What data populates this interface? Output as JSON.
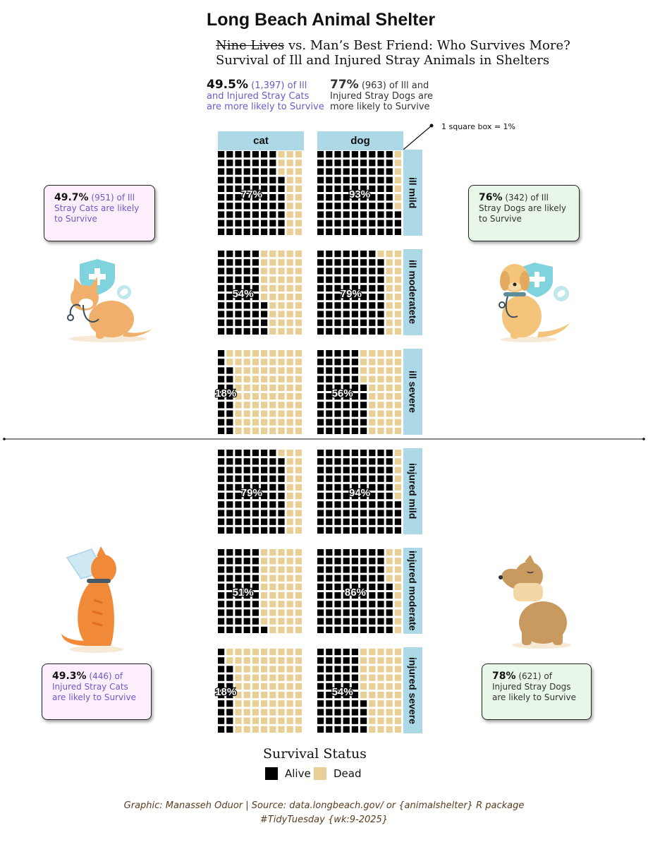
{
  "title": "Long Beach Animal Shelter",
  "subtitle": {
    "struck": "Nine Lives",
    "rest": " vs. Man’s Best Friend: Who Survives More?",
    "line2": "Survival of Ill and Injured Stray Animals in Shelters"
  },
  "summary_cat": {
    "pct": "49.5%",
    "rest": " (1,397) of Ill and Injured Stray Cats are more likely to Survive"
  },
  "summary_dog": {
    "pct": "77%",
    "rest": " (963) of Ill and Injured Stray Dogs are more likely to Survive"
  },
  "annotation": "1 square box = 1%",
  "callouts": {
    "ill_cat": {
      "pct": "49.7%",
      "rest": " (951) of Ill Stray Cats are likely to Survive"
    },
    "ill_dog": {
      "pct": "76%",
      "rest": " (342) of Ill Stray Dogs are likely to Survive"
    },
    "injured_cat": {
      "pct": "49.3%",
      "rest": " (446) of Injured Stray Cats are likely to Survive"
    },
    "injured_dog": {
      "pct": "78%",
      "rest": " (621) of Injured Stray Dogs are likely to Survive"
    }
  },
  "legend": {
    "title": "Survival Status",
    "alive": "Alive",
    "dead": "Dead"
  },
  "caption": {
    "line1": "Graphic: Manasseh Oduor | Source: data.longbeach.gov/ or {animalshelter} R package",
    "line2": "#TidyTuesday {wk:9-2025}"
  },
  "colors": {
    "alive": "#000000",
    "dead": "#e8cf95",
    "strip": "#add8e6",
    "cat_callout": "#fdeefb",
    "dog_callout": "#e8f7e8"
  },
  "icons": [
    "cat-with-stethoscope-icon",
    "dog-with-stethoscope-icon",
    "cat-with-cone-icon",
    "dog-with-bandage-icon"
  ],
  "chart_data": {
    "type": "waffle",
    "unit": "1 square box = 1%",
    "columns": [
      "cat",
      "dog"
    ],
    "rows": [
      "ill mild",
      "ill moderatete",
      "ill severe",
      "injured mild",
      "injured moderate",
      "injured severe"
    ],
    "series": [
      {
        "name": "cat",
        "alive_pct": [
          77,
          54,
          18,
          79,
          51,
          18
        ],
        "labels": [
          "77%",
          "54%",
          "18%",
          "79%",
          "51%",
          "18%"
        ]
      },
      {
        "name": "dog",
        "alive_pct": [
          93,
          79,
          56,
          94,
          86,
          54
        ],
        "labels": [
          "93%",
          "79%",
          "56%",
          "94%",
          "86%",
          "54%"
        ]
      }
    ],
    "legend": [
      "Alive",
      "Dead"
    ]
  }
}
